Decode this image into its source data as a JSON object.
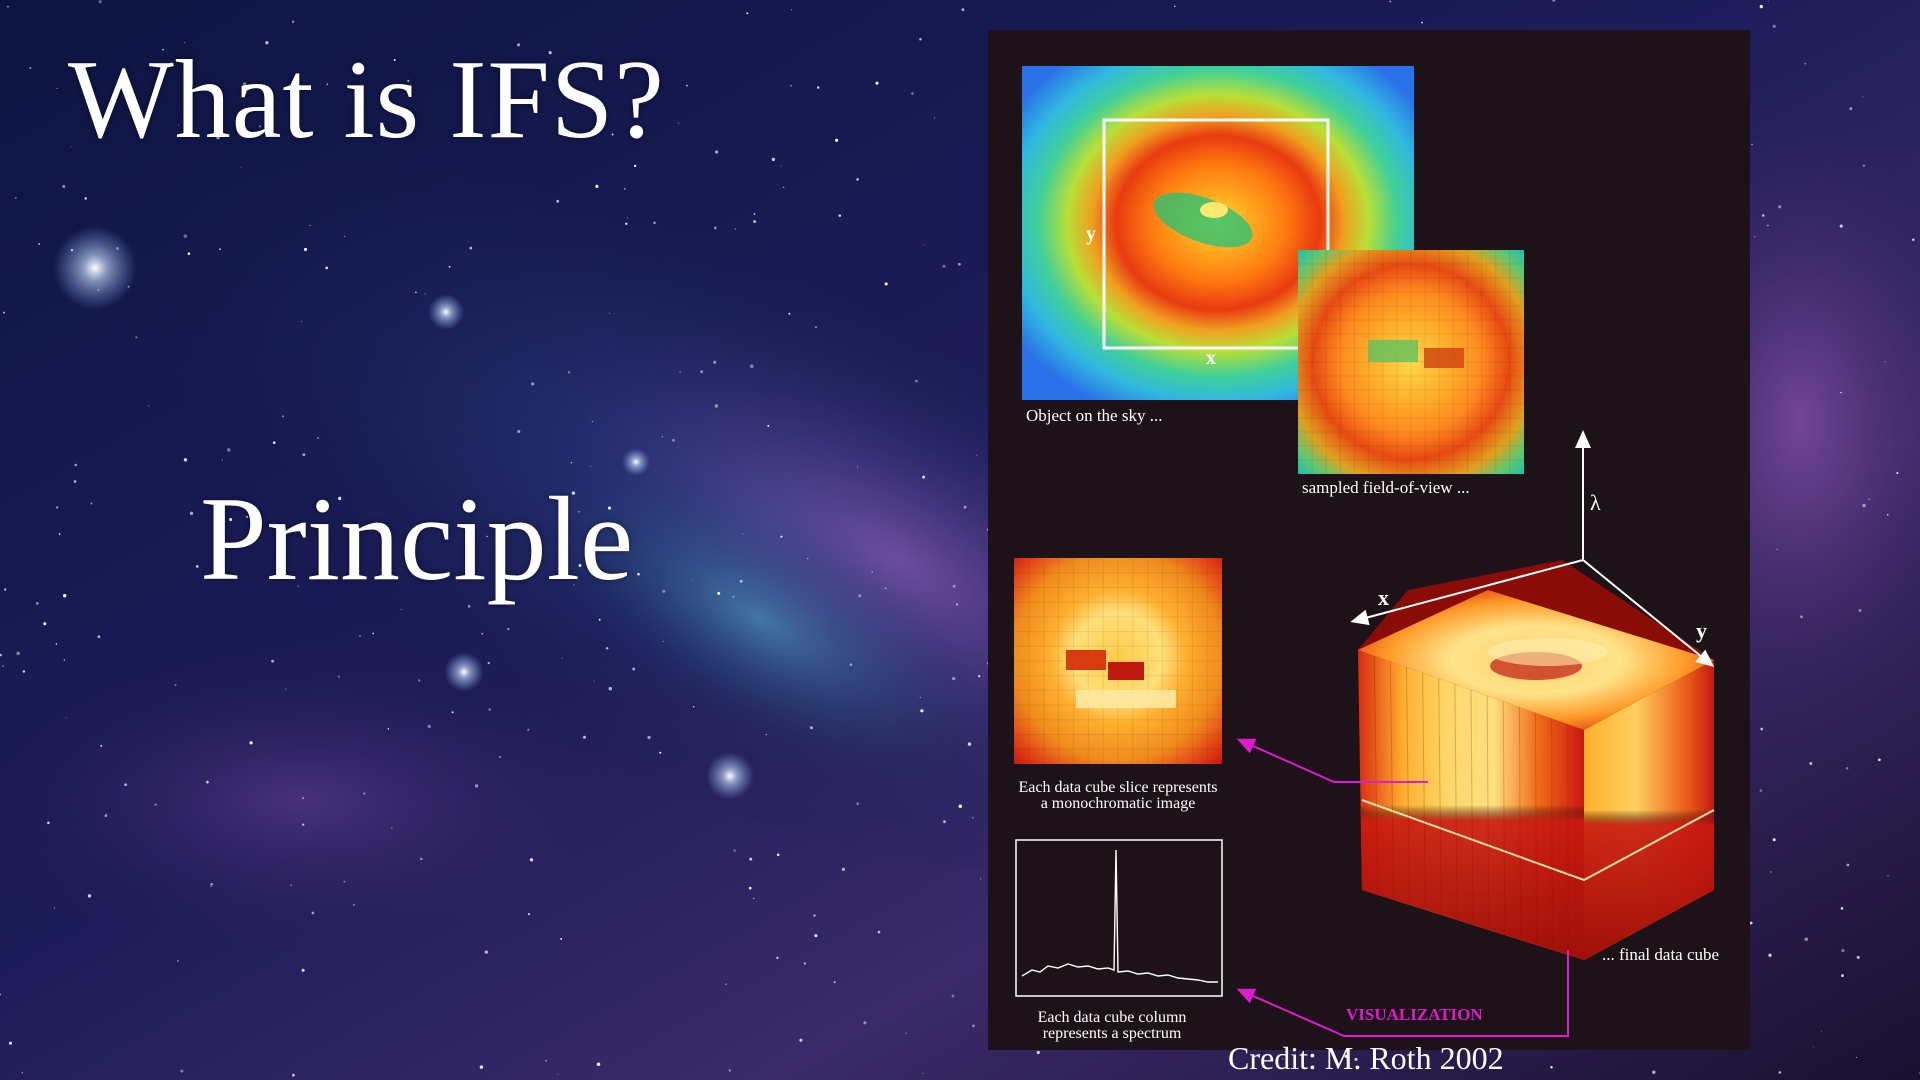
{
  "slide": {
    "title": "What is IFS?",
    "subtitle": "Principle",
    "credit": "Credit: M. Roth 2002"
  },
  "figure": {
    "labels": {
      "sky_object": "Object on the sky ...",
      "sampled_fov": "sampled field-of-view ...",
      "slice_line1": "Each data cube slice represents",
      "slice_line2": "a monochromatic image",
      "column_line1": "Each data cube column",
      "column_line2": "represents a spectrum",
      "final_cube": "... final data cube",
      "visualization": "VISUALIZATION",
      "axis_x_sky": "x",
      "axis_y_sky": "y",
      "axis_lambda": "λ",
      "axis_x_cube": "x",
      "axis_y_cube": "y"
    },
    "colors": {
      "panel_background": "#1c1218",
      "arrow_magenta": "#e01ad0",
      "cube_red": "#c8180c",
      "cube_yellow": "#ffd23a"
    }
  }
}
